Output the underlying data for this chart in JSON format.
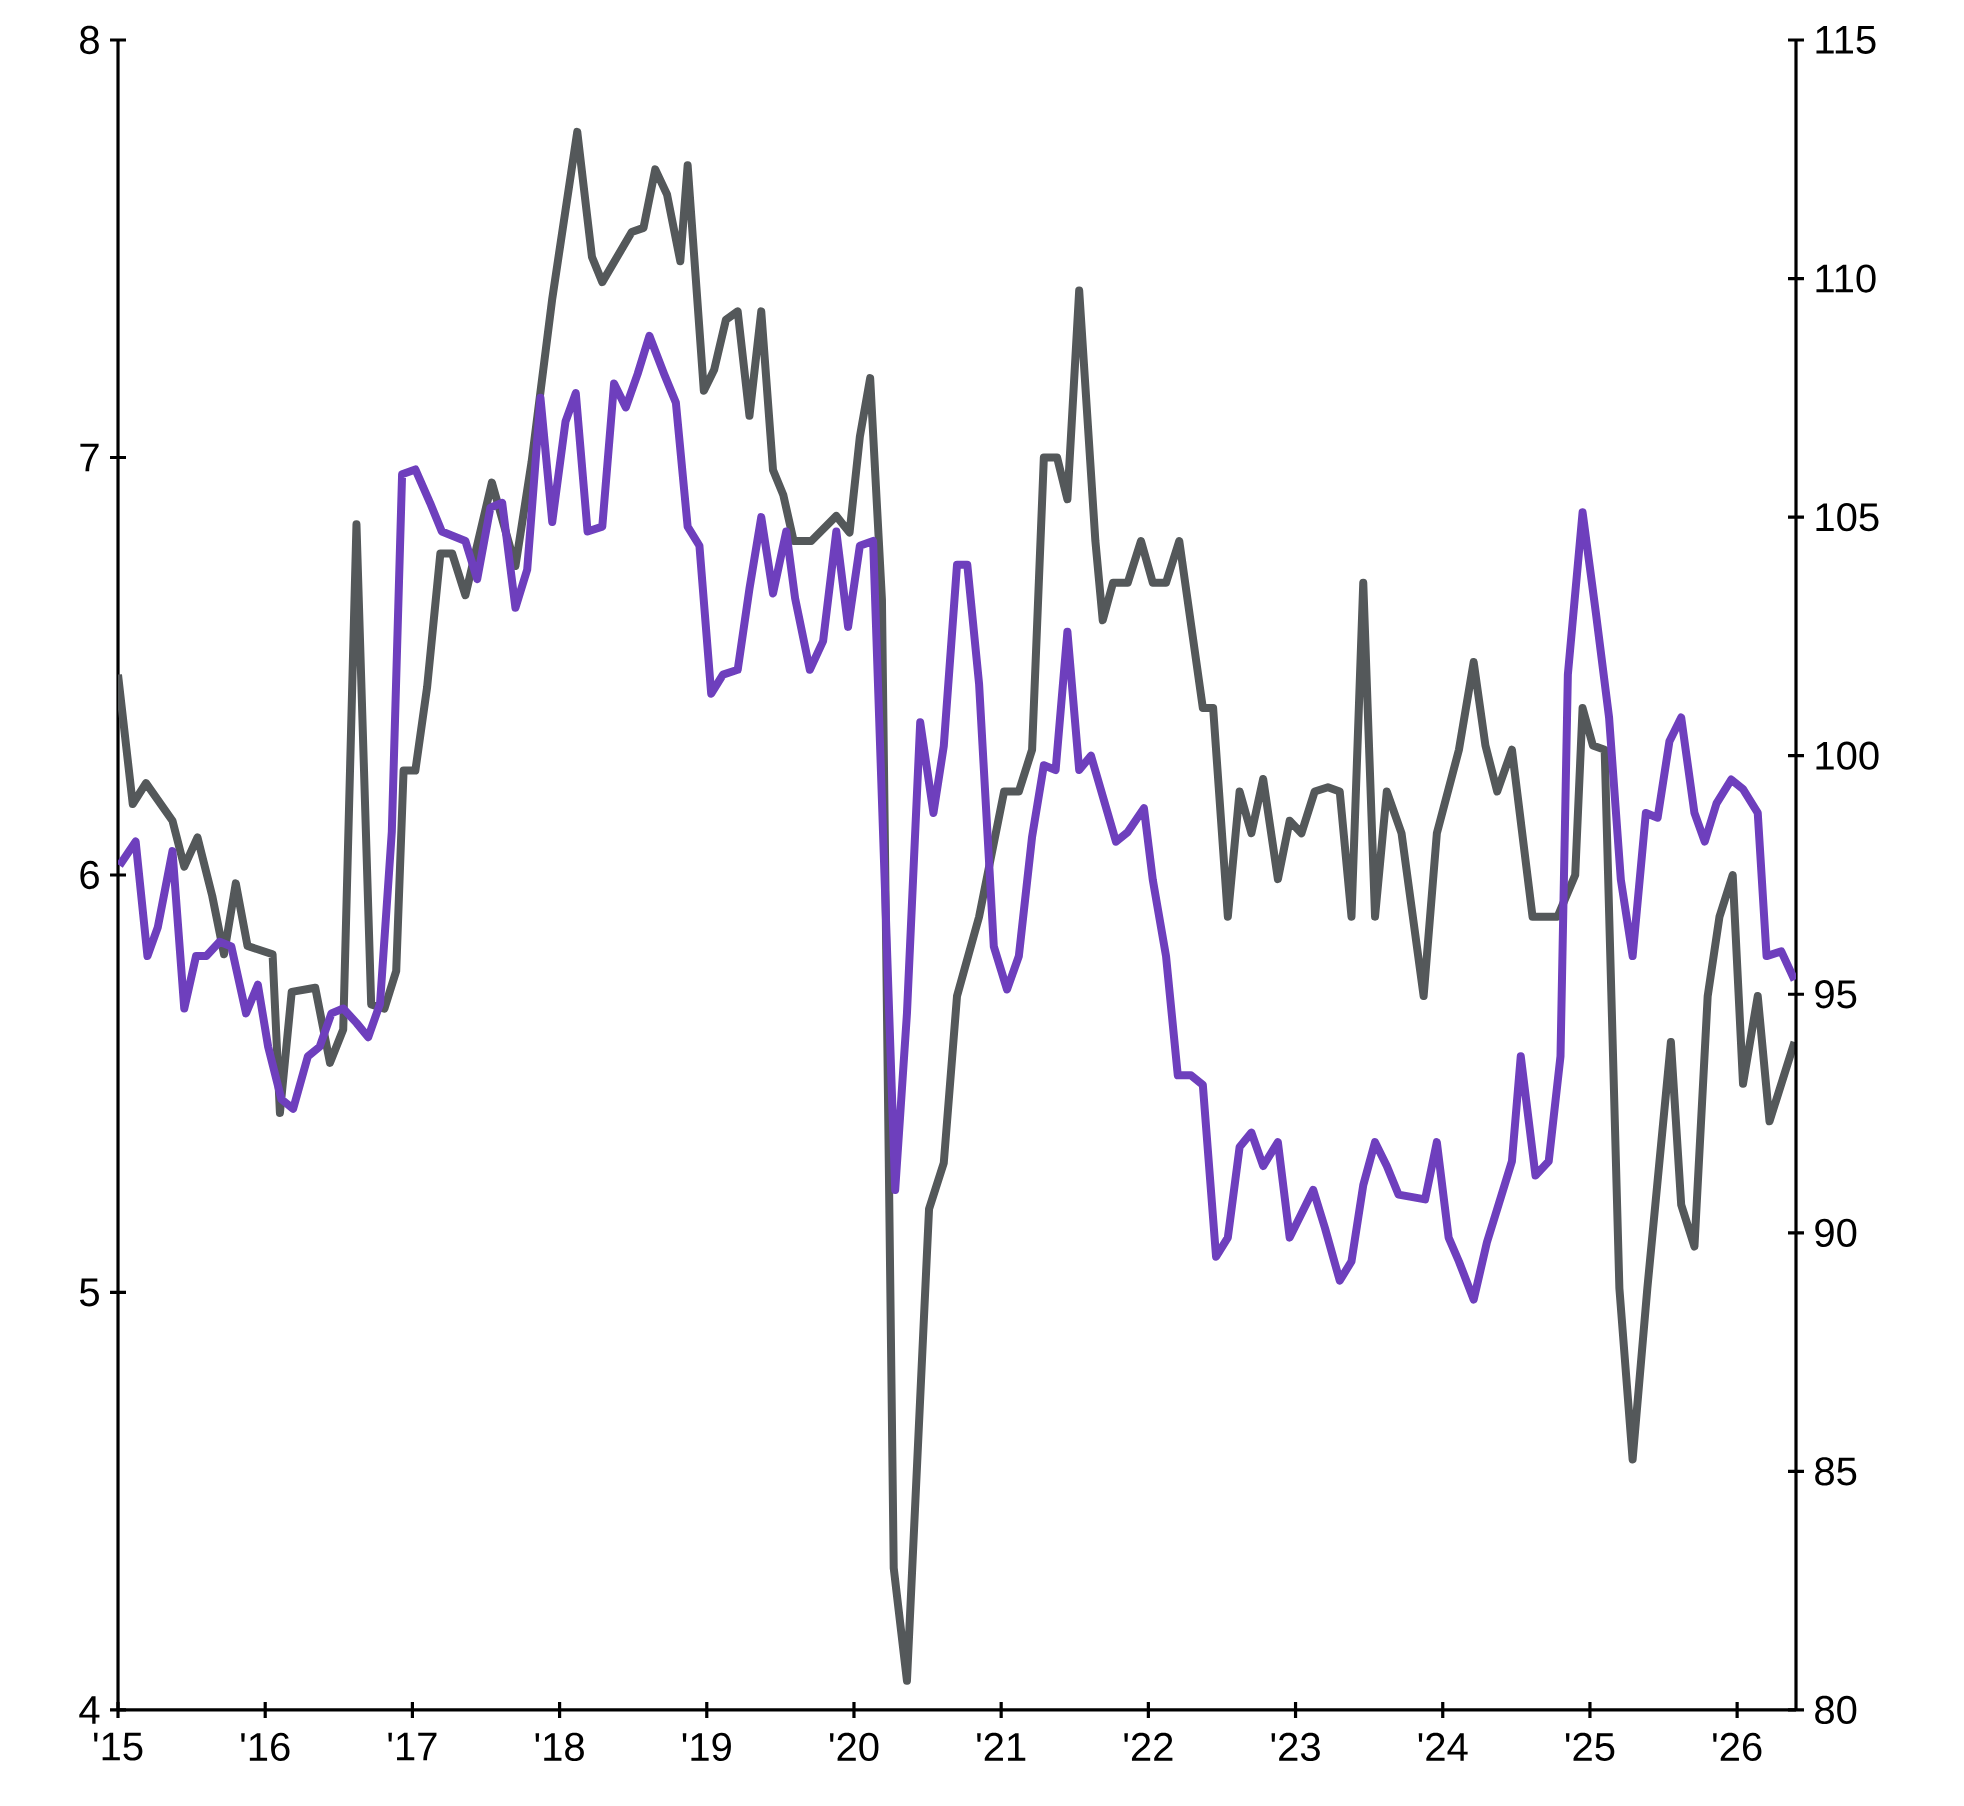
{
  "chart_data": {
    "type": "line",
    "xlim": [
      2015,
      2026.4
    ],
    "xticks": [
      {
        "value": 2015,
        "label": "'15"
      },
      {
        "value": 2016,
        "label": "'16"
      },
      {
        "value": 2017,
        "label": "'17"
      },
      {
        "value": 2018,
        "label": "'18"
      },
      {
        "value": 2019,
        "label": "'19"
      },
      {
        "value": 2020,
        "label": "'20"
      },
      {
        "value": 2021,
        "label": "'21"
      },
      {
        "value": 2022,
        "label": "'22"
      },
      {
        "value": 2023,
        "label": "'23"
      },
      {
        "value": 2024,
        "label": "'24"
      },
      {
        "value": 2025,
        "label": "'25"
      },
      {
        "value": 2026,
        "label": "'26"
      }
    ],
    "ylim": [
      4,
      8
    ],
    "yticks": [
      4,
      5,
      6,
      7,
      8
    ],
    "y2lim": [
      80,
      115
    ],
    "y2ticks": [
      80,
      85,
      90,
      95,
      100,
      105,
      110,
      115
    ],
    "series": [
      {
        "color": "#54585a",
        "x": [
          2015.0,
          2015.1,
          2015.19,
          2015.37,
          2015.45,
          2015.54,
          2015.64,
          2015.72,
          2015.8,
          2015.88,
          2016.05,
          2016.1,
          2016.18,
          2016.34,
          2016.44,
          2016.53,
          2016.62,
          2016.72,
          2016.81,
          2016.89,
          2016.94,
          2017.02,
          2017.1,
          2017.19,
          2017.27,
          2017.36,
          2017.54,
          2017.62,
          2017.7,
          2017.81,
          2017.95,
          2018.12,
          2018.22,
          2018.29,
          2018.49,
          2018.57,
          2018.65,
          2018.73,
          2018.82,
          2018.87,
          2018.98,
          2019.05,
          2019.13,
          2019.21,
          2019.29,
          2019.37,
          2019.45,
          2019.52,
          2019.59,
          2019.71,
          2019.88,
          2019.97,
          2020.04,
          2020.11,
          2020.19,
          2020.27,
          2020.36,
          2020.51,
          2020.61,
          2020.7,
          2020.85,
          2021.02,
          2021.12,
          2021.21,
          2021.29,
          2021.38,
          2021.45,
          2021.53,
          2021.64,
          2021.69,
          2021.76,
          2021.86,
          2021.95,
          2022.03,
          2022.12,
          2022.21,
          2022.37,
          2022.44,
          2022.54,
          2022.62,
          2022.7,
          2022.78,
          2022.88,
          2022.96,
          2023.04,
          2023.13,
          2023.22,
          2023.3,
          2023.38,
          2023.46,
          2023.54,
          2023.62,
          2023.72,
          2023.87,
          2023.96,
          2024.11,
          2024.21,
          2024.29,
          2024.37,
          2024.47,
          2024.61,
          2024.78,
          2024.9,
          2024.95,
          2025.02,
          2025.1,
          2025.2,
          2025.29,
          2025.39,
          2025.55,
          2025.62,
          2025.71,
          2025.8,
          2025.88,
          2025.97,
          2026.04,
          2026.14,
          2026.22,
          2026.39
        ],
        "values": [
          6.48,
          6.17,
          6.22,
          6.13,
          6.02,
          6.09,
          5.95,
          5.81,
          5.98,
          5.83,
          5.81,
          5.43,
          5.72,
          5.73,
          5.55,
          5.63,
          6.84,
          5.69,
          5.68,
          5.77,
          6.25,
          6.25,
          6.45,
          6.77,
          6.77,
          6.67,
          6.94,
          6.84,
          6.74,
          6.99,
          7.38,
          7.78,
          7.48,
          7.42,
          7.54,
          7.55,
          7.69,
          7.63,
          7.47,
          7.7,
          7.16,
          7.21,
          7.33,
          7.35,
          7.1,
          7.35,
          6.97,
          6.91,
          6.8,
          6.8,
          6.86,
          6.82,
          7.05,
          7.19,
          6.66,
          4.34,
          4.07,
          5.2,
          5.31,
          5.71,
          5.9,
          6.2,
          6.2,
          6.3,
          7.0,
          7.0,
          6.9,
          7.4,
          6.8,
          6.61,
          6.7,
          6.7,
          6.8,
          6.7,
          6.7,
          6.8,
          6.4,
          6.4,
          5.9,
          6.2,
          6.1,
          6.23,
          5.99,
          6.13,
          6.1,
          6.2,
          6.21,
          6.2,
          5.9,
          6.7,
          5.9,
          6.2,
          6.1,
          5.71,
          6.1,
          6.3,
          6.51,
          6.31,
          6.2,
          6.3,
          5.9,
          5.9,
          6.0,
          6.4,
          6.31,
          6.3,
          5.01,
          4.6,
          5.01,
          5.6,
          5.21,
          5.11,
          5.71,
          5.9,
          6.0,
          5.5,
          5.71,
          5.41,
          5.6
        ]
      },
      {
        "color": "#6e3fbd",
        "axis": "y2",
        "x": [
          2015.01,
          2015.12,
          2015.2,
          2015.27,
          2015.37,
          2015.45,
          2015.53,
          2015.6,
          2015.69,
          2015.77,
          2015.87,
          2015.95,
          2016.02,
          2016.11,
          2016.19,
          2016.29,
          2016.37,
          2016.45,
          2016.53,
          2016.62,
          2016.7,
          2016.78,
          2016.86,
          2016.93,
          2017.02,
          2017.12,
          2017.2,
          2017.28,
          2017.36,
          2017.44,
          2017.53,
          2017.61,
          2017.7,
          2017.78,
          2017.87,
          2017.95,
          2018.04,
          2018.11,
          2018.19,
          2018.29,
          2018.37,
          2018.45,
          2018.53,
          2018.61,
          2018.71,
          2018.79,
          2018.87,
          2018.95,
          2019.03,
          2019.11,
          2019.21,
          2019.29,
          2019.37,
          2019.45,
          2019.54,
          2019.6,
          2019.7,
          2019.79,
          2019.88,
          2019.96,
          2020.04,
          2020.13,
          2020.28,
          2020.36,
          2020.45,
          2020.54,
          2020.61,
          2020.7,
          2020.77,
          2020.85,
          2020.95,
          2021.04,
          2021.12,
          2021.21,
          2021.29,
          2021.37,
          2021.45,
          2021.53,
          2021.61,
          2021.78,
          2021.86,
          2021.97,
          2022.03,
          2022.12,
          2022.2,
          2022.29,
          2022.37,
          2022.46,
          2022.54,
          2022.62,
          2022.7,
          2022.78,
          2022.88,
          2022.96,
          2023.04,
          2023.12,
          2023.2,
          2023.3,
          2023.38,
          2023.46,
          2023.54,
          2023.62,
          2023.7,
          2023.88,
          2023.96,
          2024.04,
          2024.11,
          2024.21,
          2024.3,
          2024.38,
          2024.47,
          2024.53,
          2024.63,
          2024.72,
          2024.8,
          2024.85,
          2024.95,
          2025.04,
          2025.13,
          2025.21,
          2025.29,
          2025.38,
          2025.46,
          2025.54,
          2025.62,
          2025.71,
          2025.78,
          2025.86,
          2025.96,
          2026.04,
          2026.14,
          2026.2,
          2026.3,
          2026.39
        ],
        "values": [
          97.7,
          98.2,
          95.8,
          96.4,
          98.0,
          94.7,
          95.8,
          95.8,
          96.1,
          96.0,
          94.6,
          95.2,
          93.9,
          92.8,
          92.6,
          93.7,
          93.9,
          94.6,
          94.7,
          94.4,
          94.1,
          94.8,
          98.4,
          105.9,
          106.0,
          105.3,
          104.7,
          104.6,
          104.5,
          103.7,
          105.2,
          105.3,
          103.1,
          103.9,
          107.5,
          104.9,
          107.0,
          107.6,
          104.7,
          104.8,
          107.8,
          107.3,
          108.0,
          108.8,
          108.0,
          107.4,
          104.8,
          104.4,
          101.3,
          101.7,
          101.8,
          103.5,
          105.0,
          103.4,
          104.7,
          103.3,
          101.8,
          102.4,
          104.7,
          102.7,
          104.4,
          104.5,
          90.9,
          94.6,
          100.7,
          98.8,
          100.2,
          104.0,
          104.0,
          101.5,
          96.0,
          95.1,
          95.8,
          98.3,
          99.8,
          99.7,
          102.6,
          99.7,
          100.0,
          98.2,
          98.4,
          98.9,
          97.4,
          95.8,
          93.3,
          93.3,
          93.1,
          89.5,
          89.9,
          91.8,
          92.1,
          91.4,
          91.9,
          89.9,
          90.4,
          90.9,
          90.1,
          89.0,
          89.4,
          91.0,
          91.9,
          91.4,
          90.8,
          90.7,
          91.9,
          89.9,
          89.4,
          88.6,
          89.8,
          90.6,
          91.5,
          93.7,
          91.2,
          91.5,
          93.7,
          101.7,
          105.1,
          103.0,
          100.8,
          97.4,
          95.8,
          98.8,
          98.7,
          100.3,
          100.8,
          98.8,
          98.2,
          99.0,
          99.5,
          99.3,
          98.8,
          95.8,
          95.9,
          95.3
        ]
      }
    ]
  }
}
